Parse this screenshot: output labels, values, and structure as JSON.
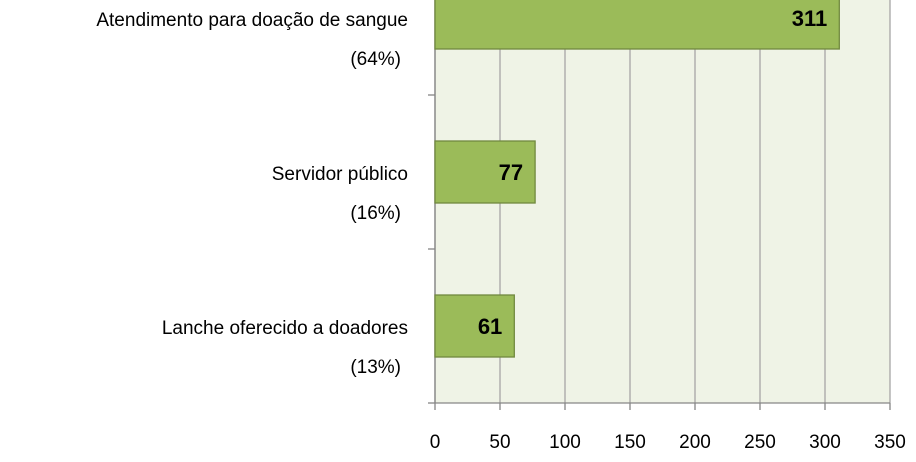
{
  "chart_data": {
    "type": "bar",
    "orientation": "horizontal",
    "categories": [
      "Atendimento para doação de sangue",
      "Servidor público",
      "Lanche oferecido a doadores"
    ],
    "category_sublabels": [
      "(64%)",
      "(16%)",
      "(13%)"
    ],
    "values": [
      311,
      77,
      61
    ],
    "color": "#9bbb59",
    "xlim": [
      0,
      350
    ],
    "xticks": [
      0,
      50,
      100,
      150,
      200,
      250,
      300,
      350
    ],
    "grid": true
  }
}
